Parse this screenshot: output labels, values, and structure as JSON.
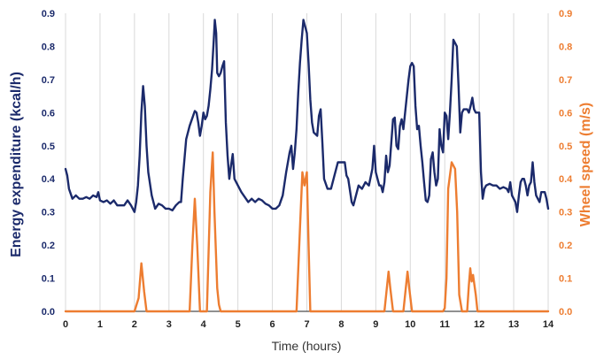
{
  "colors": {
    "energy": "#1b2a6b",
    "wheel": "#ed7d31",
    "grid": "#d9d9d9",
    "axis": "#222222"
  },
  "chart_data": {
    "type": "line",
    "xlabel": "Time (hours)",
    "ylabel_left": "Energy expenditure (kcal/h)",
    "ylabel_right": "Wheel speed (m/s)",
    "xlim": [
      0,
      14
    ],
    "ylim_left": [
      0,
      0.9
    ],
    "ylim_right": [
      0,
      0.9
    ],
    "x_ticks": [
      "0",
      "1",
      "2",
      "3",
      "4",
      "5",
      "6",
      "7",
      "8",
      "9",
      "10",
      "11",
      "12",
      "13",
      "14"
    ],
    "y_ticks_left": [
      "0.0",
      "0.1",
      "0.2",
      "0.3",
      "0.4",
      "0.5",
      "0.6",
      "0.7",
      "0.8",
      "0.9"
    ],
    "y_ticks_right": [
      "0.0",
      "0.1",
      "0.2",
      "0.3",
      "0.4",
      "0.5",
      "0.6",
      "0.7",
      "0.8",
      "0.9"
    ],
    "grid": "vertical",
    "legend": "none",
    "series": [
      {
        "axis": "left",
        "points": [
          [
            0.0,
            0.43
          ],
          [
            0.05,
            0.41
          ],
          [
            0.1,
            0.37
          ],
          [
            0.2,
            0.34
          ],
          [
            0.3,
            0.35
          ],
          [
            0.4,
            0.34
          ],
          [
            0.5,
            0.34
          ],
          [
            0.6,
            0.345
          ],
          [
            0.7,
            0.34
          ],
          [
            0.8,
            0.35
          ],
          [
            0.9,
            0.345
          ],
          [
            0.95,
            0.36
          ],
          [
            1.0,
            0.335
          ],
          [
            1.1,
            0.33
          ],
          [
            1.2,
            0.335
          ],
          [
            1.3,
            0.325
          ],
          [
            1.4,
            0.335
          ],
          [
            1.5,
            0.32
          ],
          [
            1.6,
            0.32
          ],
          [
            1.7,
            0.32
          ],
          [
            1.8,
            0.335
          ],
          [
            1.9,
            0.32
          ],
          [
            1.95,
            0.31
          ],
          [
            2.0,
            0.3
          ],
          [
            2.05,
            0.33
          ],
          [
            2.1,
            0.38
          ],
          [
            2.15,
            0.47
          ],
          [
            2.2,
            0.6
          ],
          [
            2.25,
            0.68
          ],
          [
            2.3,
            0.62
          ],
          [
            2.35,
            0.5
          ],
          [
            2.4,
            0.42
          ],
          [
            2.5,
            0.35
          ],
          [
            2.6,
            0.31
          ],
          [
            2.7,
            0.325
          ],
          [
            2.8,
            0.32
          ],
          [
            2.9,
            0.31
          ],
          [
            3.0,
            0.31
          ],
          [
            3.1,
            0.305
          ],
          [
            3.2,
            0.32
          ],
          [
            3.3,
            0.33
          ],
          [
            3.35,
            0.33
          ],
          [
            3.4,
            0.4
          ],
          [
            3.5,
            0.52
          ],
          [
            3.6,
            0.56
          ],
          [
            3.7,
            0.59
          ],
          [
            3.75,
            0.605
          ],
          [
            3.8,
            0.6
          ],
          [
            3.85,
            0.57
          ],
          [
            3.9,
            0.53
          ],
          [
            3.95,
            0.56
          ],
          [
            4.0,
            0.6
          ],
          [
            4.05,
            0.58
          ],
          [
            4.1,
            0.59
          ],
          [
            4.15,
            0.62
          ],
          [
            4.2,
            0.67
          ],
          [
            4.25,
            0.73
          ],
          [
            4.3,
            0.82
          ],
          [
            4.33,
            0.88
          ],
          [
            4.37,
            0.84
          ],
          [
            4.4,
            0.72
          ],
          [
            4.45,
            0.71
          ],
          [
            4.5,
            0.72
          ],
          [
            4.55,
            0.74
          ],
          [
            4.6,
            0.755
          ],
          [
            4.65,
            0.57
          ],
          [
            4.7,
            0.47
          ],
          [
            4.75,
            0.4
          ],
          [
            4.8,
            0.44
          ],
          [
            4.85,
            0.475
          ],
          [
            4.9,
            0.4
          ],
          [
            5.0,
            0.38
          ],
          [
            5.1,
            0.36
          ],
          [
            5.2,
            0.345
          ],
          [
            5.3,
            0.33
          ],
          [
            5.4,
            0.34
          ],
          [
            5.5,
            0.33
          ],
          [
            5.6,
            0.34
          ],
          [
            5.7,
            0.335
          ],
          [
            5.8,
            0.325
          ],
          [
            5.9,
            0.32
          ],
          [
            6.0,
            0.31
          ],
          [
            6.1,
            0.31
          ],
          [
            6.2,
            0.32
          ],
          [
            6.3,
            0.35
          ],
          [
            6.4,
            0.42
          ],
          [
            6.5,
            0.48
          ],
          [
            6.55,
            0.5
          ],
          [
            6.6,
            0.43
          ],
          [
            6.65,
            0.48
          ],
          [
            6.7,
            0.55
          ],
          [
            6.75,
            0.66
          ],
          [
            6.8,
            0.75
          ],
          [
            6.85,
            0.82
          ],
          [
            6.9,
            0.88
          ],
          [
            6.95,
            0.86
          ],
          [
            7.0,
            0.84
          ],
          [
            7.05,
            0.75
          ],
          [
            7.1,
            0.64
          ],
          [
            7.15,
            0.57
          ],
          [
            7.2,
            0.54
          ],
          [
            7.3,
            0.53
          ],
          [
            7.35,
            0.59
          ],
          [
            7.4,
            0.61
          ],
          [
            7.45,
            0.51
          ],
          [
            7.5,
            0.4
          ],
          [
            7.6,
            0.37
          ],
          [
            7.7,
            0.37
          ],
          [
            7.8,
            0.41
          ],
          [
            7.9,
            0.45
          ],
          [
            8.0,
            0.45
          ],
          [
            8.05,
            0.45
          ],
          [
            8.1,
            0.45
          ],
          [
            8.15,
            0.41
          ],
          [
            8.2,
            0.4
          ],
          [
            8.3,
            0.33
          ],
          [
            8.35,
            0.32
          ],
          [
            8.4,
            0.34
          ],
          [
            8.5,
            0.38
          ],
          [
            8.6,
            0.37
          ],
          [
            8.7,
            0.39
          ],
          [
            8.8,
            0.38
          ],
          [
            8.9,
            0.43
          ],
          [
            8.95,
            0.5
          ],
          [
            9.0,
            0.42
          ],
          [
            9.1,
            0.38
          ],
          [
            9.15,
            0.38
          ],
          [
            9.2,
            0.36
          ],
          [
            9.25,
            0.39
          ],
          [
            9.3,
            0.47
          ],
          [
            9.35,
            0.42
          ],
          [
            9.4,
            0.44
          ],
          [
            9.45,
            0.51
          ],
          [
            9.5,
            0.58
          ],
          [
            9.55,
            0.585
          ],
          [
            9.6,
            0.5
          ],
          [
            9.65,
            0.49
          ],
          [
            9.7,
            0.56
          ],
          [
            9.75,
            0.58
          ],
          [
            9.8,
            0.55
          ],
          [
            9.85,
            0.6
          ],
          [
            9.9,
            0.65
          ],
          [
            9.95,
            0.7
          ],
          [
            10.0,
            0.74
          ],
          [
            10.05,
            0.75
          ],
          [
            10.1,
            0.74
          ],
          [
            10.15,
            0.62
          ],
          [
            10.2,
            0.55
          ],
          [
            10.25,
            0.56
          ],
          [
            10.3,
            0.5
          ],
          [
            10.35,
            0.45
          ],
          [
            10.4,
            0.39
          ],
          [
            10.45,
            0.335
          ],
          [
            10.5,
            0.33
          ],
          [
            10.55,
            0.35
          ],
          [
            10.6,
            0.46
          ],
          [
            10.65,
            0.48
          ],
          [
            10.7,
            0.42
          ],
          [
            10.75,
            0.38
          ],
          [
            10.8,
            0.4
          ],
          [
            10.85,
            0.55
          ],
          [
            10.9,
            0.5
          ],
          [
            10.95,
            0.48
          ],
          [
            11.0,
            0.6
          ],
          [
            11.05,
            0.59
          ],
          [
            11.1,
            0.52
          ],
          [
            11.15,
            0.6
          ],
          [
            11.2,
            0.7
          ],
          [
            11.25,
            0.82
          ],
          [
            11.3,
            0.81
          ],
          [
            11.35,
            0.8
          ],
          [
            11.4,
            0.68
          ],
          [
            11.45,
            0.54
          ],
          [
            11.5,
            0.6
          ],
          [
            11.55,
            0.61
          ],
          [
            11.6,
            0.61
          ],
          [
            11.65,
            0.61
          ],
          [
            11.7,
            0.6
          ],
          [
            11.75,
            0.62
          ],
          [
            11.8,
            0.645
          ],
          [
            11.85,
            0.61
          ],
          [
            11.9,
            0.6
          ],
          [
            11.95,
            0.6
          ],
          [
            12.0,
            0.6
          ],
          [
            12.05,
            0.42
          ],
          [
            12.1,
            0.34
          ],
          [
            12.15,
            0.37
          ],
          [
            12.2,
            0.38
          ],
          [
            12.3,
            0.385
          ],
          [
            12.4,
            0.38
          ],
          [
            12.5,
            0.38
          ],
          [
            12.6,
            0.37
          ],
          [
            12.7,
            0.375
          ],
          [
            12.8,
            0.37
          ],
          [
            12.85,
            0.36
          ],
          [
            12.9,
            0.39
          ],
          [
            12.95,
            0.35
          ],
          [
            13.0,
            0.34
          ],
          [
            13.05,
            0.33
          ],
          [
            13.1,
            0.3
          ],
          [
            13.15,
            0.35
          ],
          [
            13.2,
            0.39
          ],
          [
            13.25,
            0.4
          ],
          [
            13.3,
            0.4
          ],
          [
            13.35,
            0.38
          ],
          [
            13.4,
            0.35
          ],
          [
            13.45,
            0.38
          ],
          [
            13.5,
            0.39
          ],
          [
            13.55,
            0.45
          ],
          [
            13.6,
            0.39
          ],
          [
            13.65,
            0.35
          ],
          [
            13.7,
            0.34
          ],
          [
            13.75,
            0.33
          ],
          [
            13.8,
            0.36
          ],
          [
            13.85,
            0.36
          ],
          [
            13.9,
            0.36
          ],
          [
            13.95,
            0.34
          ],
          [
            14.0,
            0.31
          ]
        ]
      },
      {
        "axis": "right",
        "points": [
          [
            0.0,
            0.0
          ],
          [
            2.0,
            0.0
          ],
          [
            2.12,
            0.04
          ],
          [
            2.2,
            0.145
          ],
          [
            2.28,
            0.06
          ],
          [
            2.35,
            0.0
          ],
          [
            3.6,
            0.0
          ],
          [
            3.68,
            0.2
          ],
          [
            3.75,
            0.34
          ],
          [
            3.82,
            0.2
          ],
          [
            3.9,
            0.0
          ],
          [
            4.1,
            0.0
          ],
          [
            4.2,
            0.36
          ],
          [
            4.27,
            0.48
          ],
          [
            4.32,
            0.3
          ],
          [
            4.4,
            0.07
          ],
          [
            4.45,
            0.02
          ],
          [
            4.5,
            0.0
          ],
          [
            6.7,
            0.0
          ],
          [
            6.8,
            0.25
          ],
          [
            6.87,
            0.42
          ],
          [
            6.93,
            0.38
          ],
          [
            7.0,
            0.42
          ],
          [
            7.05,
            0.2
          ],
          [
            7.1,
            0.0
          ],
          [
            9.25,
            0.0
          ],
          [
            9.32,
            0.07
          ],
          [
            9.37,
            0.12
          ],
          [
            9.42,
            0.07
          ],
          [
            9.5,
            0.0
          ],
          [
            9.8,
            0.0
          ],
          [
            9.87,
            0.07
          ],
          [
            9.92,
            0.12
          ],
          [
            9.97,
            0.07
          ],
          [
            10.05,
            0.0
          ],
          [
            10.95,
            0.0
          ],
          [
            11.0,
            0.01
          ],
          [
            11.05,
            0.1
          ],
          [
            11.1,
            0.37
          ],
          [
            11.2,
            0.45
          ],
          [
            11.3,
            0.43
          ],
          [
            11.36,
            0.3
          ],
          [
            11.42,
            0.05
          ],
          [
            11.5,
            0.0
          ],
          [
            11.65,
            0.0
          ],
          [
            11.7,
            0.08
          ],
          [
            11.74,
            0.13
          ],
          [
            11.78,
            0.09
          ],
          [
            11.82,
            0.11
          ],
          [
            11.86,
            0.08
          ],
          [
            11.9,
            0.05
          ],
          [
            11.95,
            0.0
          ],
          [
            14.0,
            0.0
          ]
        ]
      }
    ]
  }
}
